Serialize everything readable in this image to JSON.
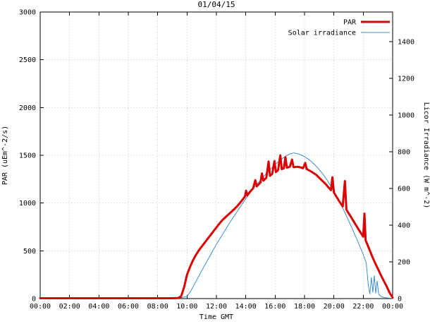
{
  "chart_data": {
    "type": "line",
    "title": "01/04/15",
    "xlabel": "Time GMT",
    "ylabel_left": "PAR (uEm^-2/s)",
    "ylabel_right": "Licor Irradiance (W m^-2)",
    "grid": true,
    "legend_position": "top-right-inside",
    "x_ticks": [
      {
        "h": 0,
        "label": "00:00"
      },
      {
        "h": 2,
        "label": "02:00"
      },
      {
        "h": 4,
        "label": "04:00"
      },
      {
        "h": 6,
        "label": "06:00"
      },
      {
        "h": 8,
        "label": "08:00"
      },
      {
        "h": 10,
        "label": "10:00"
      },
      {
        "h": 12,
        "label": "12:00"
      },
      {
        "h": 14,
        "label": "14:00"
      },
      {
        "h": 16,
        "label": "16:00"
      },
      {
        "h": 18,
        "label": "18:00"
      },
      {
        "h": 20,
        "label": "20:00"
      },
      {
        "h": 22,
        "label": "22:00"
      },
      {
        "h": 24,
        "label": "00:00"
      }
    ],
    "y_left": {
      "min": 0,
      "max": 3000,
      "ticks": [
        0,
        500,
        1000,
        1500,
        2000,
        2500,
        3000
      ]
    },
    "y_right": {
      "min": 0,
      "max": 1561,
      "ticks": [
        0,
        200,
        400,
        600,
        800,
        1000,
        1200,
        1400
      ]
    },
    "series": [
      {
        "name": "PAR",
        "axis": "left",
        "color": "#dd0000",
        "width": 3,
        "points": [
          [
            0,
            4
          ],
          [
            0.5,
            4
          ],
          [
            1,
            4
          ],
          [
            1.5,
            4
          ],
          [
            2,
            4
          ],
          [
            2.5,
            4
          ],
          [
            3,
            4
          ],
          [
            3.5,
            4
          ],
          [
            4,
            4
          ],
          [
            4.5,
            4
          ],
          [
            5,
            4
          ],
          [
            5.5,
            4
          ],
          [
            6,
            4
          ],
          [
            6.5,
            4
          ],
          [
            7,
            4
          ],
          [
            7.5,
            4
          ],
          [
            8,
            4
          ],
          [
            8.5,
            4
          ],
          [
            9,
            4
          ],
          [
            9.4,
            6
          ],
          [
            9.6,
            25
          ],
          [
            9.8,
            120
          ],
          [
            10,
            250
          ],
          [
            10.2,
            330
          ],
          [
            10.4,
            400
          ],
          [
            10.6,
            455
          ],
          [
            10.8,
            505
          ],
          [
            11,
            545
          ],
          [
            11.2,
            585
          ],
          [
            11.4,
            625
          ],
          [
            11.6,
            665
          ],
          [
            11.8,
            705
          ],
          [
            12,
            745
          ],
          [
            12.2,
            785
          ],
          [
            12.4,
            820
          ],
          [
            12.6,
            850
          ],
          [
            12.8,
            878
          ],
          [
            13,
            905
          ],
          [
            13.2,
            935
          ],
          [
            13.4,
            965
          ],
          [
            13.6,
            1000
          ],
          [
            13.8,
            1040
          ],
          [
            13.95,
            1070
          ],
          [
            14.02,
            1130
          ],
          [
            14.1,
            1080
          ],
          [
            14.3,
            1120
          ],
          [
            14.5,
            1155
          ],
          [
            14.65,
            1240
          ],
          [
            14.75,
            1175
          ],
          [
            15,
            1215
          ],
          [
            15.1,
            1310
          ],
          [
            15.2,
            1235
          ],
          [
            15.4,
            1265
          ],
          [
            15.55,
            1435
          ],
          [
            15.65,
            1285
          ],
          [
            15.8,
            1305
          ],
          [
            15.95,
            1440
          ],
          [
            16.05,
            1325
          ],
          [
            16.2,
            1345
          ],
          [
            16.35,
            1500
          ],
          [
            16.45,
            1355
          ],
          [
            16.6,
            1365
          ],
          [
            16.7,
            1480
          ],
          [
            16.8,
            1370
          ],
          [
            17,
            1380
          ],
          [
            17.15,
            1455
          ],
          [
            17.25,
            1375
          ],
          [
            17.5,
            1380
          ],
          [
            17.7,
            1375
          ],
          [
            17.9,
            1365
          ],
          [
            18.05,
            1420
          ],
          [
            18.15,
            1355
          ],
          [
            18.4,
            1335
          ],
          [
            18.6,
            1315
          ],
          [
            18.8,
            1295
          ],
          [
            19,
            1265
          ],
          [
            19.2,
            1235
          ],
          [
            19.4,
            1205
          ],
          [
            19.6,
            1170
          ],
          [
            19.8,
            1135
          ],
          [
            19.9,
            1270
          ],
          [
            20,
            1110
          ],
          [
            20.2,
            1060
          ],
          [
            20.4,
            1010
          ],
          [
            20.6,
            965
          ],
          [
            20.75,
            1230
          ],
          [
            20.85,
            930
          ],
          [
            21,
            895
          ],
          [
            21.2,
            845
          ],
          [
            21.4,
            795
          ],
          [
            21.6,
            745
          ],
          [
            21.8,
            695
          ],
          [
            22,
            648
          ],
          [
            22.08,
            890
          ],
          [
            22.16,
            610
          ],
          [
            22.4,
            520
          ],
          [
            22.6,
            445
          ],
          [
            22.8,
            375
          ],
          [
            23,
            310
          ],
          [
            23.2,
            245
          ],
          [
            23.4,
            185
          ],
          [
            23.6,
            125
          ],
          [
            23.8,
            60
          ],
          [
            24,
            10
          ]
        ]
      },
      {
        "name": "Solar irradiance",
        "axis": "right",
        "color": "#3d8ec9",
        "width": 1,
        "points": [
          [
            0,
            2
          ],
          [
            1,
            2
          ],
          [
            2,
            2
          ],
          [
            3,
            2
          ],
          [
            4,
            2
          ],
          [
            5,
            2
          ],
          [
            6,
            2
          ],
          [
            7,
            2
          ],
          [
            8,
            2
          ],
          [
            9,
            2
          ],
          [
            9.5,
            3
          ],
          [
            10,
            12
          ],
          [
            10.25,
            40
          ],
          [
            10.5,
            78
          ],
          [
            10.75,
            115
          ],
          [
            11,
            152
          ],
          [
            11.25,
            188
          ],
          [
            11.5,
            224
          ],
          [
            11.75,
            260
          ],
          [
            12,
            295
          ],
          [
            12.25,
            328
          ],
          [
            12.5,
            360
          ],
          [
            12.75,
            393
          ],
          [
            13,
            425
          ],
          [
            13.25,
            455
          ],
          [
            13.5,
            485
          ],
          [
            13.75,
            515
          ],
          [
            14,
            545
          ],
          [
            14.25,
            572
          ],
          [
            14.5,
            597
          ],
          [
            14.75,
            622
          ],
          [
            15,
            645
          ],
          [
            15.25,
            668
          ],
          [
            15.5,
            690
          ],
          [
            15.75,
            710
          ],
          [
            16,
            730
          ],
          [
            16.25,
            748
          ],
          [
            16.5,
            764
          ],
          [
            16.75,
            778
          ],
          [
            17,
            788
          ],
          [
            17.25,
            793
          ],
          [
            17.5,
            790
          ],
          [
            17.75,
            783
          ],
          [
            18,
            773
          ],
          [
            18.25,
            760
          ],
          [
            18.5,
            744
          ],
          [
            18.75,
            725
          ],
          [
            19,
            703
          ],
          [
            19.25,
            678
          ],
          [
            19.5,
            650
          ],
          [
            19.75,
            618
          ],
          [
            20,
            584
          ],
          [
            20.25,
            548
          ],
          [
            20.5,
            509
          ],
          [
            20.75,
            468
          ],
          [
            21,
            425
          ],
          [
            21.25,
            381
          ],
          [
            21.5,
            335
          ],
          [
            21.75,
            288
          ],
          [
            22,
            240
          ],
          [
            22.2,
            195
          ],
          [
            22.35,
            70
          ],
          [
            22.45,
            25
          ],
          [
            22.55,
            115
          ],
          [
            22.65,
            35
          ],
          [
            22.75,
            125
          ],
          [
            22.85,
            30
          ],
          [
            22.95,
            95
          ],
          [
            23.05,
            25
          ],
          [
            23.2,
            12
          ],
          [
            23.4,
            6
          ],
          [
            23.7,
            3
          ],
          [
            24,
            1
          ]
        ]
      }
    ]
  }
}
